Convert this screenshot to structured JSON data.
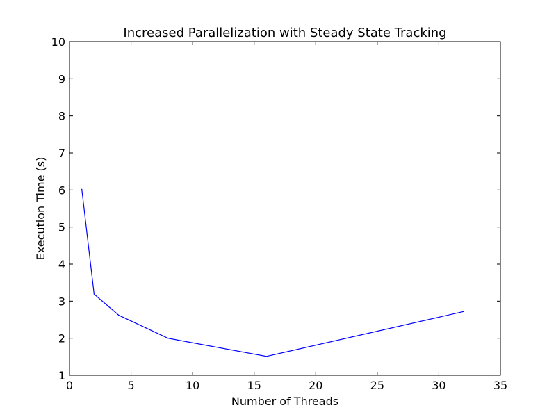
{
  "chart_data": {
    "type": "line",
    "title": "Increased Parallelization with Steady State Tracking",
    "xlabel": "Number of Threads",
    "ylabel": "Execution Time (s)",
    "xlim": [
      0,
      35
    ],
    "ylim": [
      1,
      10
    ],
    "xticks": [
      0,
      5,
      10,
      15,
      20,
      25,
      30,
      35
    ],
    "yticks": [
      1,
      2,
      3,
      4,
      5,
      6,
      7,
      8,
      9,
      10
    ],
    "grid": false,
    "series": [
      {
        "color": "#0000ff",
        "x": [
          1,
          2,
          4,
          8,
          16,
          32
        ],
        "y": [
          6.02,
          3.19,
          2.62,
          2.0,
          1.51,
          2.72
        ]
      }
    ]
  }
}
